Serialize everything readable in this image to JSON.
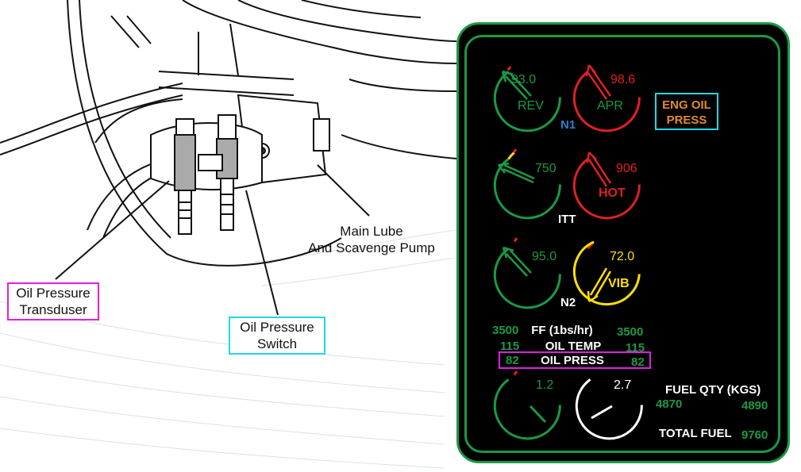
{
  "colors": {
    "panel_bg": "#000000",
    "panel_border": "#1a9a44",
    "normal": "#1a9a44",
    "warning": "#e02020",
    "caution": "#ffe000",
    "advisory": "#e08a30",
    "info": "#2a7fd0",
    "label_white": "#ffffff",
    "callout_magenta": "#e020e0",
    "callout_cyan": "#20d8e8"
  },
  "callouts": {
    "transducer": [
      "Oil Pressure",
      "Transduser"
    ],
    "switch": [
      "Oil Pressure",
      "Switch"
    ],
    "pump": [
      "Main Lube",
      "And Scavenge Pump"
    ]
  },
  "gauges": {
    "n1_left": {
      "value": "93.0",
      "sub": "REV",
      "state": "normal",
      "needle_icon": "hollow-arrow-needle"
    },
    "n1_right": {
      "value": "98.6",
      "sub": "APR",
      "state": "warning",
      "needle_icon": "hollow-arrow-needle"
    },
    "n1_label": "N1",
    "itt_left": {
      "value": "750",
      "state": "normal"
    },
    "itt_right": {
      "value": "906",
      "sub": "HOT",
      "state": "warning"
    },
    "itt_label": "ITT",
    "n2_left": {
      "value": "95.0",
      "state": "normal"
    },
    "n2_right": {
      "value": "72.0",
      "sub": "VIB",
      "state": "caution"
    },
    "n2_label": "N2",
    "oil_gauge": {
      "value": "1.2"
    },
    "fuel_gauge": {
      "value": "2.7"
    }
  },
  "annunciator": {
    "line1": "ENG OIL",
    "line2": "PRESS"
  },
  "readouts": {
    "ff": {
      "left": "3500",
      "label": "FF (1bs/hr)",
      "right": "3500"
    },
    "oil_temp": {
      "left": "115",
      "label": "OIL TEMP",
      "right": "115"
    },
    "oil_press": {
      "left": "82",
      "label": "OIL PRESS",
      "right": "82"
    }
  },
  "fuel": {
    "qty_label": "FUEL QTY (KGS)",
    "left": "4870",
    "right": "4890",
    "total_label": "TOTAL FUEL",
    "total": "9760"
  }
}
